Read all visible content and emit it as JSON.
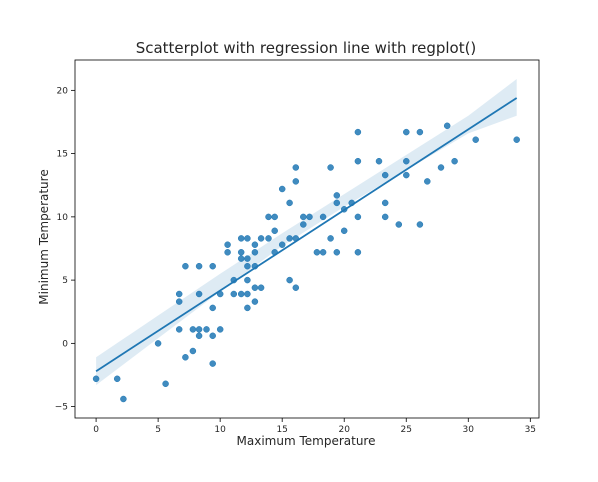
{
  "chart_data": {
    "type": "scatter",
    "title": "Scatterplot with regression line with regplot()",
    "xlabel": "Maximum Temperature",
    "ylabel": "Minimum Temperature",
    "xlim": [
      -1.7,
      35.7
    ],
    "ylim": [
      -5.9,
      22.4
    ],
    "xticks": [
      0,
      5,
      10,
      15,
      20,
      25,
      30,
      35
    ],
    "yticks": [
      -5,
      0,
      5,
      10,
      15,
      20
    ],
    "grid": false,
    "colors": {
      "points": "#1f77b4",
      "line": "#1f77b4",
      "band": "#1f77b4"
    },
    "points": [
      {
        "x": 0.0,
        "y": -2.8
      },
      {
        "x": 1.7,
        "y": -2.8
      },
      {
        "x": 2.2,
        "y": -4.4
      },
      {
        "x": 5.0,
        "y": 0.0
      },
      {
        "x": 5.6,
        "y": -3.2
      },
      {
        "x": 6.7,
        "y": 1.1
      },
      {
        "x": 6.7,
        "y": 3.3
      },
      {
        "x": 6.7,
        "y": 3.9
      },
      {
        "x": 7.2,
        "y": 6.1
      },
      {
        "x": 7.2,
        "y": -1.1
      },
      {
        "x": 7.8,
        "y": -0.6
      },
      {
        "x": 7.8,
        "y": 1.1
      },
      {
        "x": 8.3,
        "y": 0.6
      },
      {
        "x": 8.3,
        "y": 1.1
      },
      {
        "x": 8.3,
        "y": 3.9
      },
      {
        "x": 8.3,
        "y": 6.1
      },
      {
        "x": 8.9,
        "y": 1.1
      },
      {
        "x": 9.4,
        "y": 0.6
      },
      {
        "x": 9.4,
        "y": 2.8
      },
      {
        "x": 9.4,
        "y": -1.6
      },
      {
        "x": 9.4,
        "y": 6.1
      },
      {
        "x": 10.0,
        "y": 1.1
      },
      {
        "x": 10.0,
        "y": 3.9
      },
      {
        "x": 10.6,
        "y": 7.2
      },
      {
        "x": 10.6,
        "y": 7.8
      },
      {
        "x": 11.1,
        "y": 3.9
      },
      {
        "x": 11.1,
        "y": 5.0
      },
      {
        "x": 11.7,
        "y": 6.7
      },
      {
        "x": 11.7,
        "y": 7.2
      },
      {
        "x": 11.7,
        "y": 8.3
      },
      {
        "x": 11.7,
        "y": 3.9
      },
      {
        "x": 12.2,
        "y": 2.8
      },
      {
        "x": 12.2,
        "y": 3.9
      },
      {
        "x": 12.2,
        "y": 5.0
      },
      {
        "x": 12.2,
        "y": 6.1
      },
      {
        "x": 12.2,
        "y": 6.7
      },
      {
        "x": 12.2,
        "y": 8.3
      },
      {
        "x": 12.8,
        "y": 3.3
      },
      {
        "x": 12.8,
        "y": 4.4
      },
      {
        "x": 12.8,
        "y": 6.1
      },
      {
        "x": 12.8,
        "y": 7.2
      },
      {
        "x": 12.8,
        "y": 7.8
      },
      {
        "x": 13.3,
        "y": 4.4
      },
      {
        "x": 13.3,
        "y": 8.3
      },
      {
        "x": 13.9,
        "y": 8.3
      },
      {
        "x": 13.9,
        "y": 10.0
      },
      {
        "x": 14.4,
        "y": 7.2
      },
      {
        "x": 14.4,
        "y": 8.9
      },
      {
        "x": 14.4,
        "y": 10.0
      },
      {
        "x": 15.0,
        "y": 7.8
      },
      {
        "x": 15.0,
        "y": 12.2
      },
      {
        "x": 15.6,
        "y": 5.0
      },
      {
        "x": 15.6,
        "y": 8.3
      },
      {
        "x": 15.6,
        "y": 11.1
      },
      {
        "x": 16.1,
        "y": 4.4
      },
      {
        "x": 16.1,
        "y": 8.3
      },
      {
        "x": 16.1,
        "y": 12.8
      },
      {
        "x": 16.1,
        "y": 13.9
      },
      {
        "x": 16.7,
        "y": 9.4
      },
      {
        "x": 16.7,
        "y": 10.0
      },
      {
        "x": 17.2,
        "y": 10.0
      },
      {
        "x": 17.8,
        "y": 7.2
      },
      {
        "x": 18.3,
        "y": 7.2
      },
      {
        "x": 18.3,
        "y": 10.0
      },
      {
        "x": 18.9,
        "y": 8.3
      },
      {
        "x": 18.9,
        "y": 13.9
      },
      {
        "x": 19.4,
        "y": 7.2
      },
      {
        "x": 19.4,
        "y": 11.1
      },
      {
        "x": 19.4,
        "y": 11.7
      },
      {
        "x": 20.0,
        "y": 8.9
      },
      {
        "x": 20.0,
        "y": 10.6
      },
      {
        "x": 20.6,
        "y": 11.1
      },
      {
        "x": 21.1,
        "y": 7.2
      },
      {
        "x": 21.1,
        "y": 10.0
      },
      {
        "x": 21.1,
        "y": 14.4
      },
      {
        "x": 21.1,
        "y": 16.7
      },
      {
        "x": 22.8,
        "y": 14.4
      },
      {
        "x": 23.3,
        "y": 10.0
      },
      {
        "x": 23.3,
        "y": 11.1
      },
      {
        "x": 23.3,
        "y": 13.3
      },
      {
        "x": 24.4,
        "y": 9.4
      },
      {
        "x": 25.0,
        "y": 13.3
      },
      {
        "x": 25.0,
        "y": 14.4
      },
      {
        "x": 25.0,
        "y": 16.7
      },
      {
        "x": 26.1,
        "y": 9.4
      },
      {
        "x": 26.1,
        "y": 16.7
      },
      {
        "x": 26.7,
        "y": 12.8
      },
      {
        "x": 27.8,
        "y": 13.9
      },
      {
        "x": 28.3,
        "y": 17.2
      },
      {
        "x": 28.9,
        "y": 14.4
      },
      {
        "x": 30.6,
        "y": 16.1
      },
      {
        "x": 33.9,
        "y": 16.1
      }
    ],
    "regression": {
      "x": [
        0.0,
        33.9
      ],
      "y": [
        -2.2,
        19.4
      ]
    },
    "confidence_band": {
      "x": [
        0,
        5,
        10,
        15,
        20,
        25,
        30,
        33.9
      ],
      "upper": [
        -1.1,
        2.2,
        5.5,
        8.7,
        11.8,
        14.9,
        18.0,
        20.9
      ],
      "lower": [
        -3.3,
        0.4,
        4.1,
        7.7,
        10.8,
        13.7,
        16.6,
        18.0
      ]
    }
  }
}
